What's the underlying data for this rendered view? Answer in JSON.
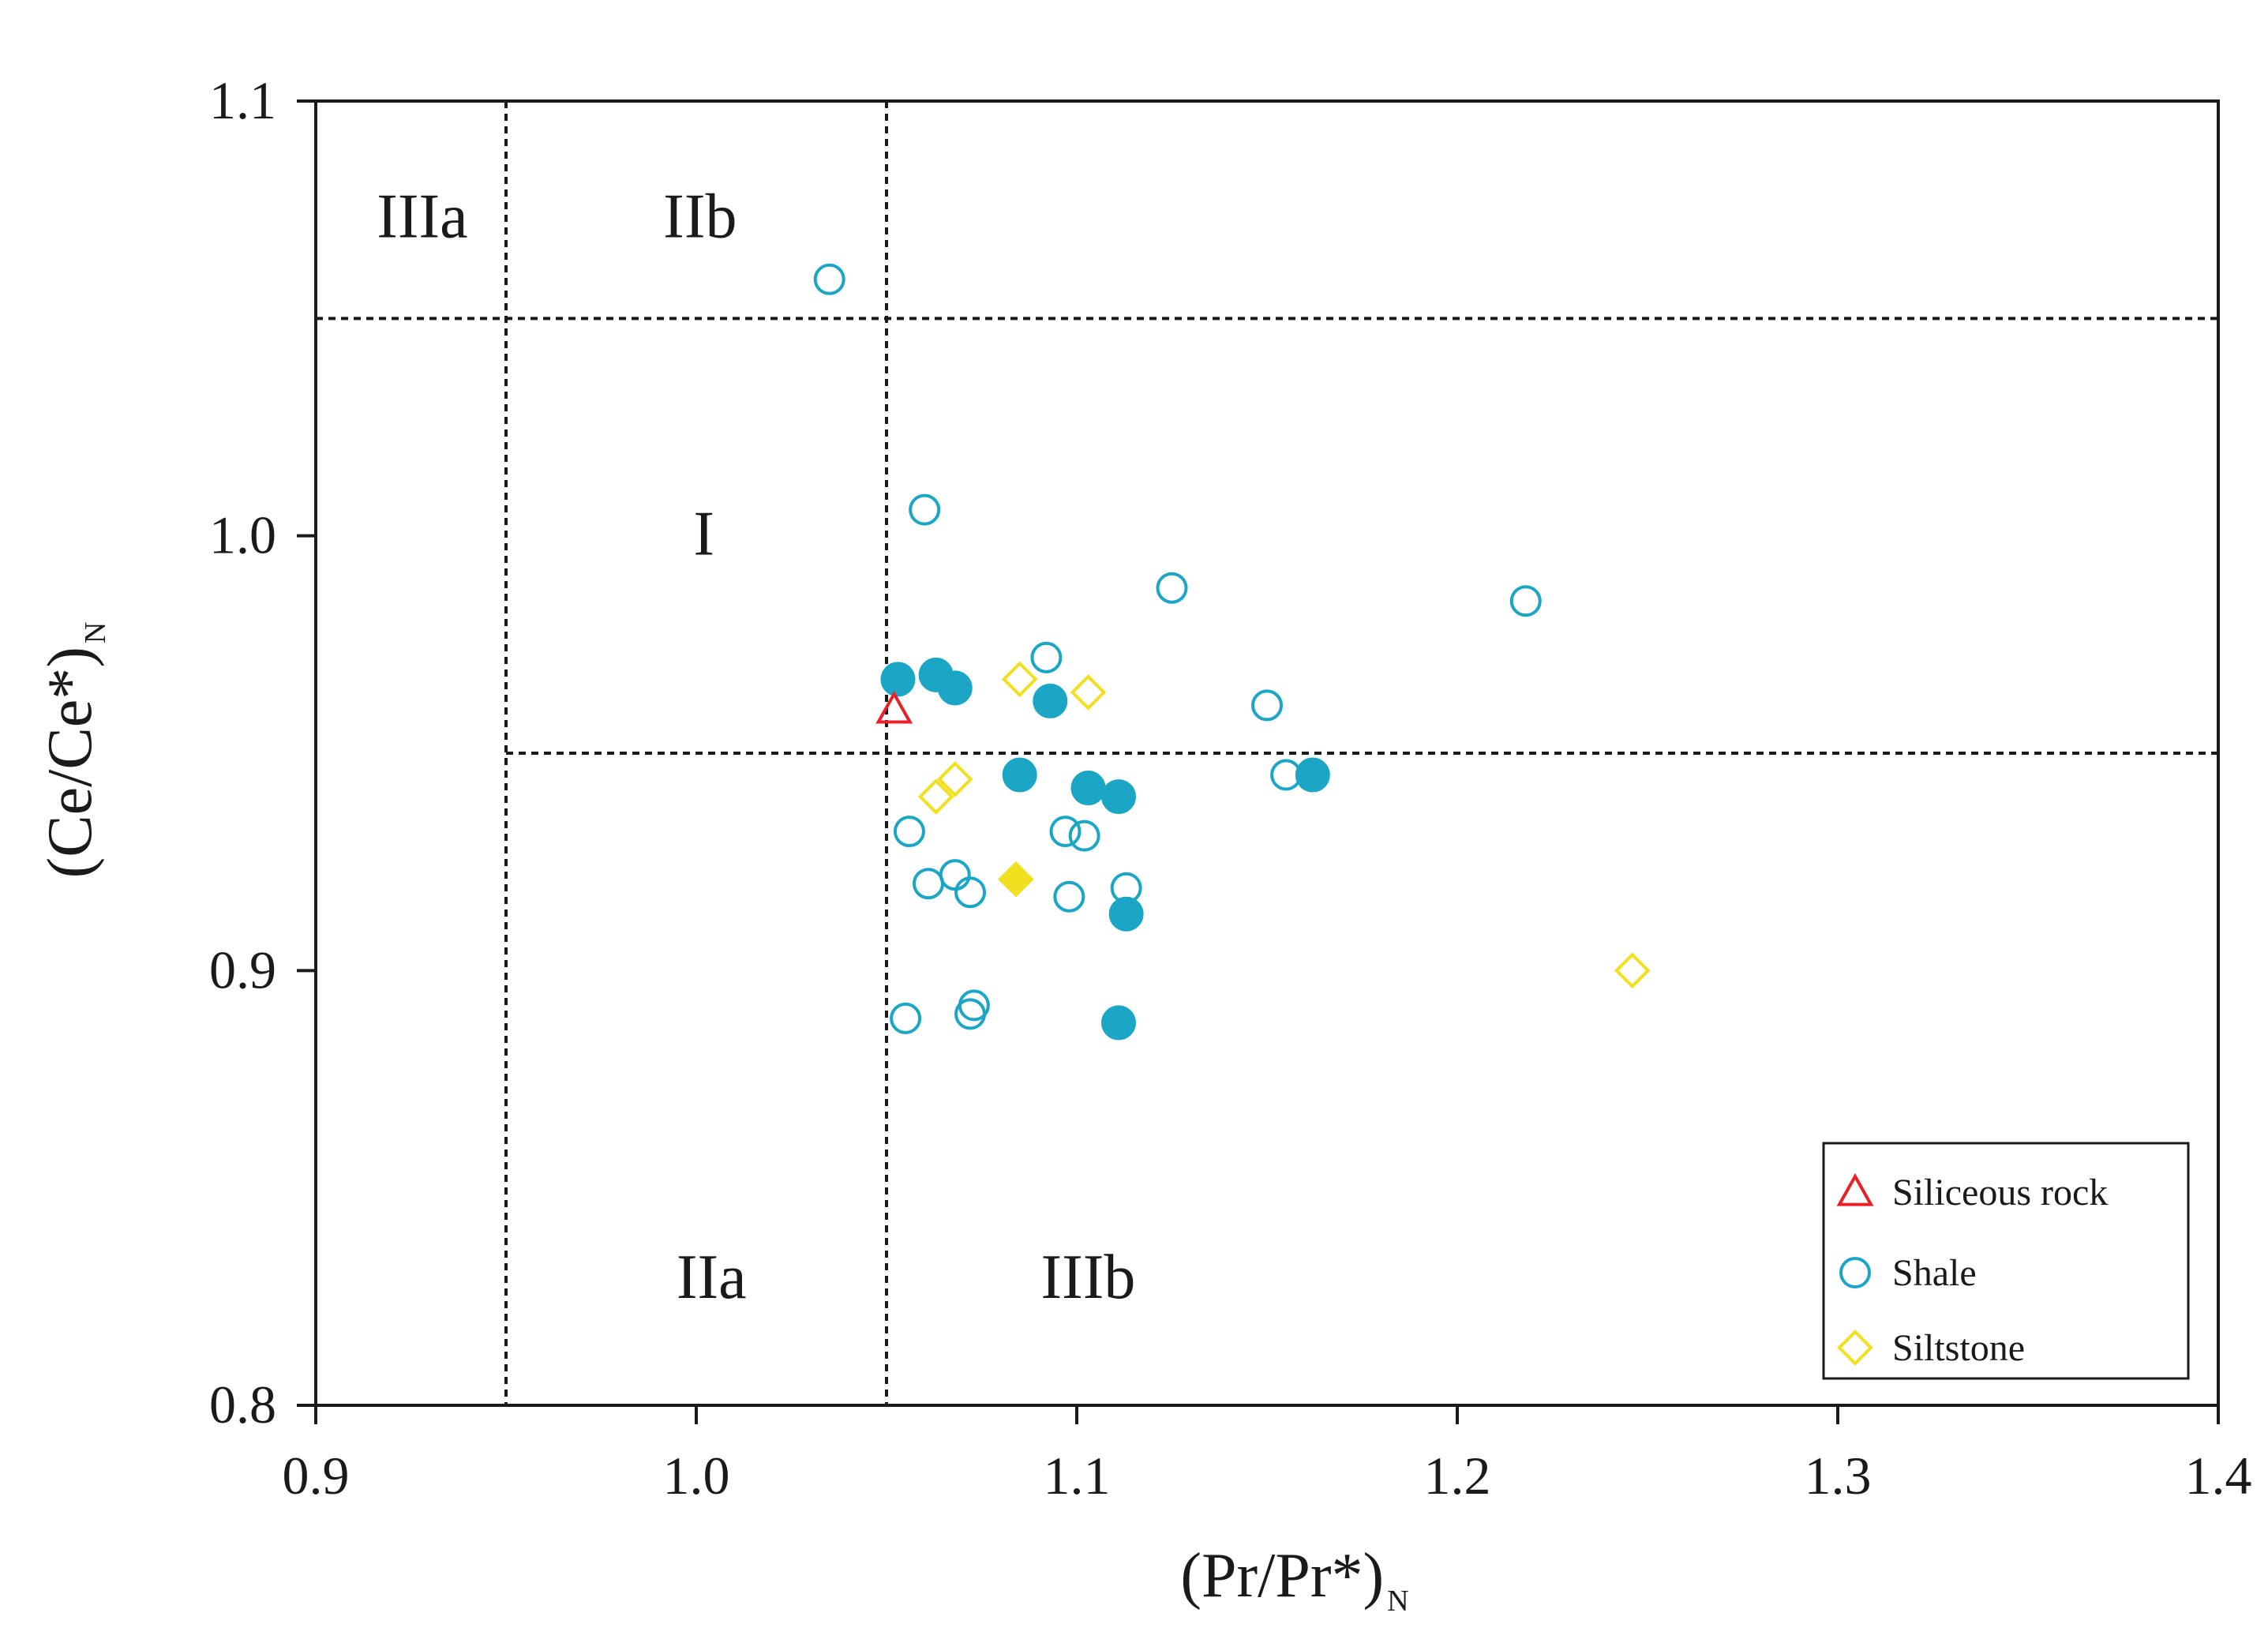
{
  "chart_data": {
    "type": "scatter",
    "title": "",
    "xlabel": "(Pr/Pr*)",
    "xlabel_sub": "N",
    "ylabel": "(Ce/Ce*)",
    "ylabel_sub": "N",
    "xlim": [
      0.9,
      1.4
    ],
    "ylim": [
      0.8,
      1.1
    ],
    "x_ticks": [
      "0.9",
      "1.0",
      "1.1",
      "1.2",
      "1.3",
      "1.4"
    ],
    "y_ticks": [
      "0.8",
      "0.9",
      "1.0",
      "1.1"
    ],
    "grid": false,
    "boundaries": {
      "vertical_x": [
        0.95,
        1.05
      ],
      "horizontal_y": [
        0.95,
        1.05
      ]
    },
    "regions": [
      {
        "label": "IIIa",
        "x": 0.928,
        "y": 1.072
      },
      {
        "label": "IIb",
        "x": 1.001,
        "y": 1.072
      },
      {
        "label": "I",
        "x": 1.002,
        "y": 0.999
      },
      {
        "label": "IIa",
        "x": 1.004,
        "y": 0.828
      },
      {
        "label": "IIIb",
        "x": 1.103,
        "y": 0.828
      }
    ],
    "legend_position": "bottom-right",
    "colors": {
      "siliceous": "#e8202a",
      "shale": "#1aa6c4",
      "siltstone": "#f0e020",
      "frame": "#1a1a1a"
    },
    "series": [
      {
        "name": "Siliceous rock",
        "marker": "triangle",
        "points": [
          {
            "x": 1.052,
            "y": 0.96,
            "filled": false
          }
        ]
      },
      {
        "name": "Shale",
        "marker": "circle",
        "points": [
          {
            "x": 1.035,
            "y": 1.059,
            "filled": false
          },
          {
            "x": 1.06,
            "y": 1.006,
            "filled": false
          },
          {
            "x": 1.125,
            "y": 0.988,
            "filled": false
          },
          {
            "x": 1.218,
            "y": 0.985,
            "filled": false
          },
          {
            "x": 1.092,
            "y": 0.972,
            "filled": false
          },
          {
            "x": 1.15,
            "y": 0.961,
            "filled": false
          },
          {
            "x": 1.155,
            "y": 0.945,
            "filled": false
          },
          {
            "x": 1.056,
            "y": 0.932,
            "filled": false
          },
          {
            "x": 1.097,
            "y": 0.932,
            "filled": false
          },
          {
            "x": 1.102,
            "y": 0.931,
            "filled": false
          },
          {
            "x": 1.068,
            "y": 0.922,
            "filled": false
          },
          {
            "x": 1.061,
            "y": 0.92,
            "filled": false
          },
          {
            "x": 1.072,
            "y": 0.918,
            "filled": false
          },
          {
            "x": 1.113,
            "y": 0.919,
            "filled": false
          },
          {
            "x": 1.098,
            "y": 0.917,
            "filled": false
          },
          {
            "x": 1.073,
            "y": 0.892,
            "filled": false
          },
          {
            "x": 1.072,
            "y": 0.89,
            "filled": false
          },
          {
            "x": 1.055,
            "y": 0.889,
            "filled": false
          },
          {
            "x": 1.053,
            "y": 0.967,
            "filled": true
          },
          {
            "x": 1.063,
            "y": 0.968,
            "filled": true
          },
          {
            "x": 1.068,
            "y": 0.965,
            "filled": true
          },
          {
            "x": 1.093,
            "y": 0.962,
            "filled": true
          },
          {
            "x": 1.085,
            "y": 0.945,
            "filled": true
          },
          {
            "x": 1.103,
            "y": 0.942,
            "filled": true
          },
          {
            "x": 1.111,
            "y": 0.94,
            "filled": true
          },
          {
            "x": 1.162,
            "y": 0.945,
            "filled": true
          },
          {
            "x": 1.113,
            "y": 0.913,
            "filled": true
          },
          {
            "x": 1.111,
            "y": 0.888,
            "filled": true
          }
        ]
      },
      {
        "name": "Siltstone",
        "marker": "diamond",
        "points": [
          {
            "x": 1.085,
            "y": 0.967,
            "filled": false
          },
          {
            "x": 1.103,
            "y": 0.964,
            "filled": false
          },
          {
            "x": 1.068,
            "y": 0.944,
            "filled": false
          },
          {
            "x": 1.063,
            "y": 0.94,
            "filled": false
          },
          {
            "x": 1.246,
            "y": 0.9,
            "filled": false
          },
          {
            "x": 1.084,
            "y": 0.921,
            "filled": true
          }
        ]
      }
    ]
  }
}
